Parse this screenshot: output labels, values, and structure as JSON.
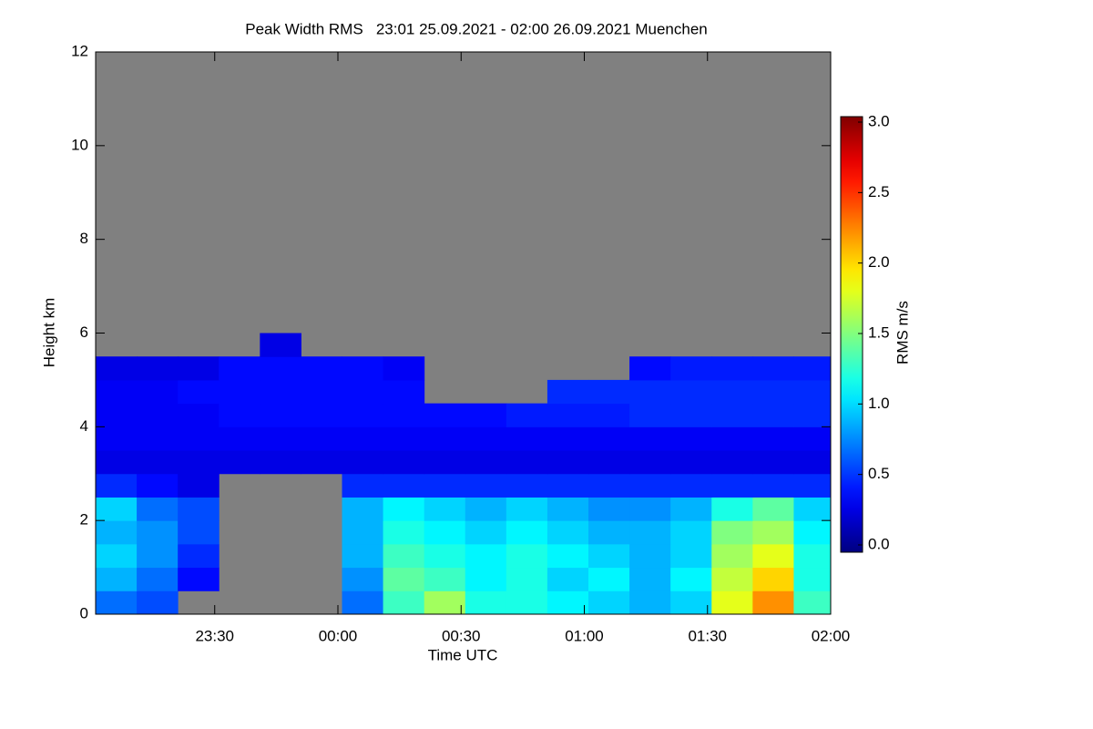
{
  "chart_data": {
    "type": "heatmap",
    "title": "Peak Width RMS   23:01 25.09.2021 - 02:00 26.09.2021 Muenchen",
    "xlabel": "Time UTC",
    "ylabel": "Height km",
    "colorbar_label": "RMS m/s",
    "colormap": "jet",
    "missing_color": "#808080",
    "xlim": [
      23.0167,
      26.0
    ],
    "xticks": [
      {
        "value": 23.5,
        "label": "23:30"
      },
      {
        "value": 24.0,
        "label": "00:00"
      },
      {
        "value": 24.5,
        "label": "00:30"
      },
      {
        "value": 25.0,
        "label": "01:00"
      },
      {
        "value": 25.5,
        "label": "01:30"
      },
      {
        "value": 26.0,
        "label": "02:00"
      }
    ],
    "ylim": [
      0,
      12
    ],
    "yticks": [
      0,
      2,
      4,
      6,
      8,
      10,
      12
    ],
    "clim": [
      0,
      3
    ],
    "cticks": [
      {
        "value": 0,
        "label": "0.0"
      },
      {
        "value": 0.5,
        "label": "0.5"
      },
      {
        "value": 1,
        "label": "1.0"
      },
      {
        "value": 1.5,
        "label": "1.5"
      },
      {
        "value": 2,
        "label": "2.0"
      },
      {
        "value": 2.5,
        "label": "2.5"
      },
      {
        "value": 3,
        "label": "3.0"
      }
    ],
    "xbins": [
      23.0167,
      23.1833,
      23.35,
      23.5167,
      23.6833,
      23.85,
      24.0167,
      24.1833,
      24.35,
      24.5167,
      24.6833,
      24.85,
      25.0167,
      25.1833,
      25.35,
      25.5167,
      25.6833,
      25.85,
      26.0
    ],
    "ybins": [
      0,
      0.5,
      1,
      1.5,
      2,
      2.5,
      3,
      3.5,
      4,
      4.5,
      5,
      5.5,
      6
    ],
    "z": [
      [
        0.7,
        0.6,
        null,
        null,
        null,
        null,
        0.7,
        1.3,
        1.6,
        1.2,
        1.2,
        1.1,
        1.0,
        0.9,
        1.0,
        1.8,
        2.2,
        1.3
      ],
      [
        0.9,
        0.7,
        0.4,
        null,
        null,
        null,
        0.8,
        1.4,
        1.3,
        1.1,
        1.2,
        1.0,
        1.1,
        0.9,
        1.1,
        1.7,
        2.0,
        1.2
      ],
      [
        1.0,
        0.8,
        0.5,
        null,
        null,
        null,
        0.9,
        1.3,
        1.2,
        1.1,
        1.2,
        1.1,
        1.0,
        0.9,
        1.0,
        1.6,
        1.8,
        1.2
      ],
      [
        0.9,
        0.8,
        0.6,
        null,
        null,
        null,
        0.9,
        1.2,
        1.1,
        1.0,
        1.1,
        1.0,
        0.9,
        0.9,
        1.0,
        1.5,
        1.6,
        1.1
      ],
      [
        1.0,
        0.7,
        0.6,
        null,
        null,
        null,
        0.9,
        1.1,
        1.0,
        0.9,
        1.0,
        0.9,
        0.8,
        0.8,
        0.9,
        1.2,
        1.4,
        1.0
      ],
      [
        0.5,
        0.4,
        0.3,
        null,
        null,
        null,
        0.5,
        0.5,
        0.5,
        0.5,
        0.5,
        0.5,
        0.5,
        0.5,
        0.5,
        0.5,
        0.5,
        0.5
      ],
      [
        0.3,
        0.3,
        0.3,
        0.3,
        0.3,
        0.3,
        0.3,
        0.3,
        0.3,
        0.3,
        0.3,
        0.3,
        0.3,
        0.3,
        0.3,
        0.3,
        0.3,
        0.3
      ],
      [
        0.35,
        0.35,
        0.35,
        0.35,
        0.35,
        0.35,
        0.35,
        0.35,
        0.35,
        0.35,
        0.35,
        0.35,
        0.35,
        0.35,
        0.35,
        0.35,
        0.35,
        0.35
      ],
      [
        0.35,
        0.35,
        0.35,
        0.4,
        0.4,
        0.4,
        0.4,
        0.4,
        0.4,
        0.4,
        0.45,
        0.45,
        0.45,
        0.5,
        0.5,
        0.5,
        0.5,
        0.5
      ],
      [
        0.35,
        0.35,
        0.4,
        0.4,
        0.4,
        0.4,
        0.4,
        0.4,
        null,
        null,
        null,
        0.5,
        0.5,
        0.5,
        0.5,
        0.5,
        0.5,
        0.5
      ],
      [
        0.3,
        0.3,
        0.3,
        0.4,
        0.4,
        0.4,
        0.4,
        0.35,
        null,
        null,
        null,
        null,
        null,
        0.4,
        0.45,
        0.45,
        0.45,
        0.45
      ],
      [
        null,
        null,
        null,
        null,
        0.3,
        null,
        null,
        null,
        null,
        null,
        null,
        null,
        null,
        null,
        null,
        null,
        null,
        null
      ]
    ]
  }
}
